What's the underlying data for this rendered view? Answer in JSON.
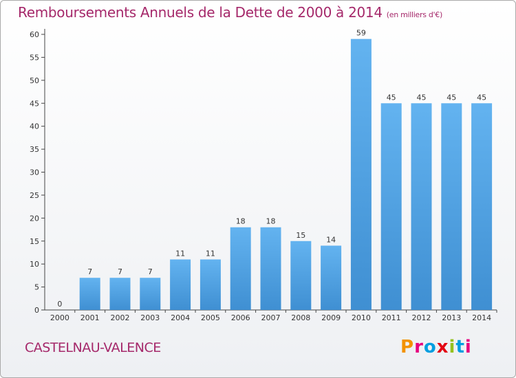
{
  "header": {
    "title": "Remboursements Annuels de la Dette de 2000 à 2014",
    "units": "(en milliers d'€)"
  },
  "footer": {
    "commune": "CASTELNAU-VALENCE",
    "logo": {
      "letters": [
        "P",
        "r",
        "o",
        "x",
        "i",
        "t",
        "i"
      ],
      "colors": [
        "#f39200",
        "#e6007e",
        "#009ee0",
        "#e30613",
        "#95c11f",
        "#009ee0",
        "#e6007e"
      ]
    }
  },
  "chart_data": {
    "type": "bar",
    "title": "Remboursements Annuels de la Dette de 2000 à 2014",
    "subtitle": "(en milliers d'€)",
    "xlabel": "",
    "ylabel": "",
    "categories": [
      "2000",
      "2001",
      "2002",
      "2003",
      "2004",
      "2005",
      "2006",
      "2007",
      "2008",
      "2009",
      "2010",
      "2011",
      "2012",
      "2013",
      "2014"
    ],
    "values": [
      0,
      7,
      7,
      7,
      11,
      11,
      18,
      18,
      15,
      14,
      59,
      45,
      45,
      45,
      45
    ],
    "ylim": [
      0,
      60
    ],
    "yticks": [
      0,
      5,
      10,
      15,
      20,
      25,
      30,
      35,
      40,
      45,
      50,
      55,
      60
    ],
    "grid": false,
    "bar_color": "#4d9fe0",
    "bar_color_light": "#63b3f0",
    "bar_color_dark": "#3f8fd2"
  }
}
